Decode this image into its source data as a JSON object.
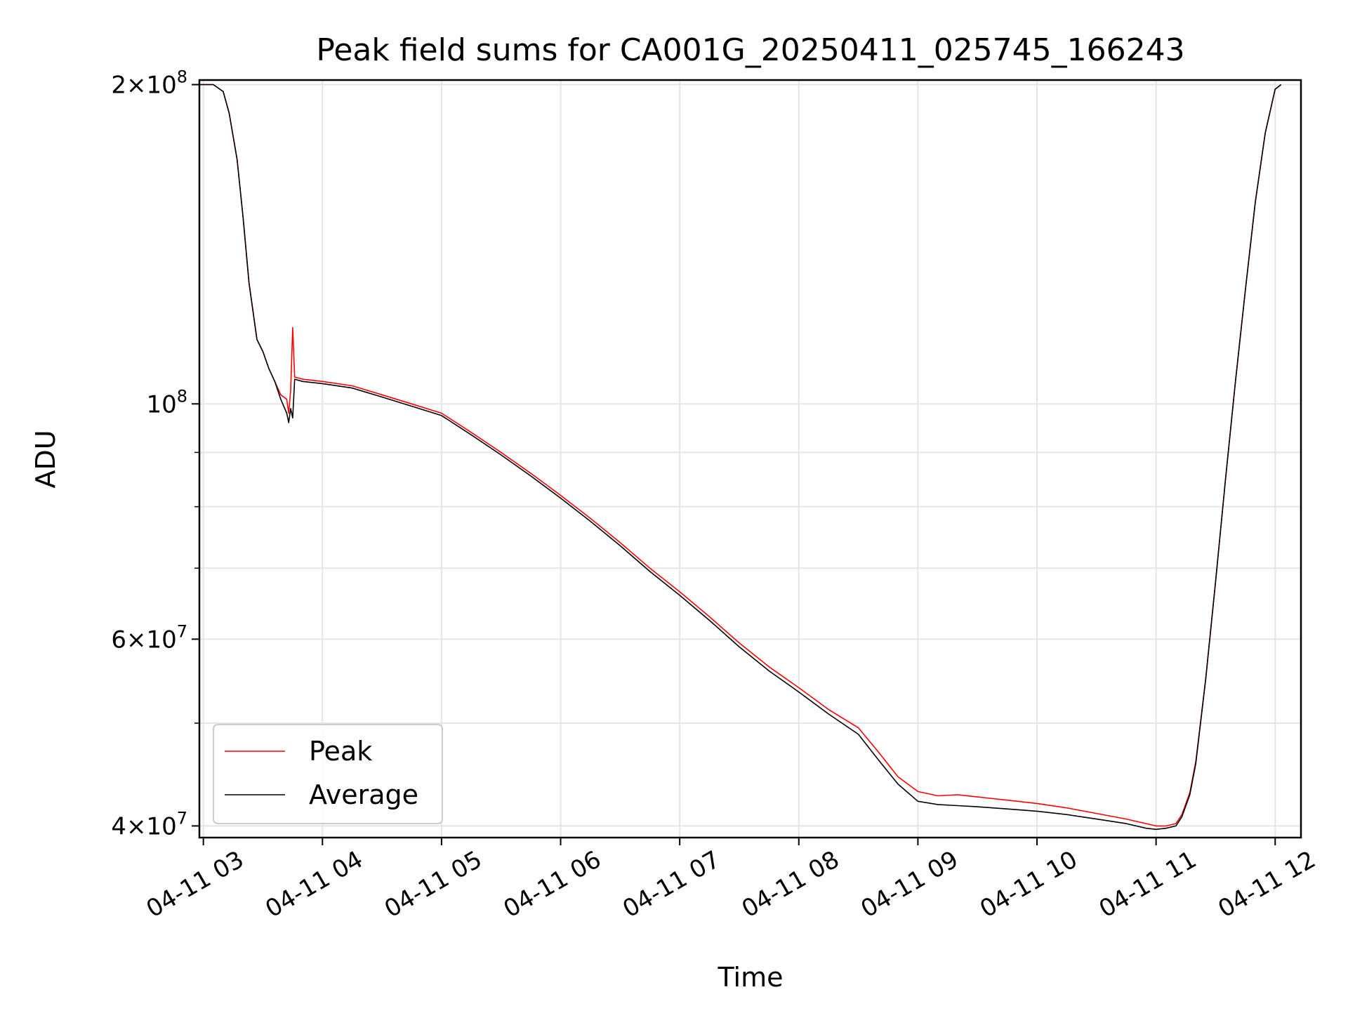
{
  "chart_data": {
    "type": "line",
    "title": "Peak field sums for CA001G_20250411_025745_166243",
    "xlabel": "Time",
    "ylabel": "ADU",
    "y_scale": "log",
    "ylim": [
      39000000,
      202000000
    ],
    "xlim": [
      "04-11 02:58",
      "04-11 12:13"
    ],
    "x_ticks": [
      "04-11 03",
      "04-11 04",
      "04-11 05",
      "04-11 06",
      "04-11 07",
      "04-11 08",
      "04-11 09",
      "04-11 10",
      "04-11 11",
      "04-11 12"
    ],
    "y_ticks": [
      {
        "value": 40000000,
        "base": "4",
        "exp": "7"
      },
      {
        "value": 60000000,
        "base": "6",
        "exp": "7"
      },
      {
        "value": 100000000,
        "base": "",
        "exp": "8"
      },
      {
        "value": 200000000,
        "base": "2",
        "exp": "8"
      }
    ],
    "y_minor_ticks": [
      50000000,
      70000000,
      80000000,
      90000000
    ],
    "grid": true,
    "legend_position": "lower-left",
    "colors": {
      "peak": "#ff0000",
      "average": "#000000",
      "grid": "#e5e5e5"
    },
    "series": [
      {
        "name": "Peak",
        "x": [
          "04-11 02:58",
          "04-11 03:05",
          "04-11 03:10",
          "04-11 03:13",
          "04-11 03:17",
          "04-11 03:20",
          "04-11 03:23",
          "04-11 03:27",
          "04-11 03:30",
          "04-11 03:33",
          "04-11 03:36",
          "04-11 03:39",
          "04-11 03:42",
          "04-11 03:43",
          "04-11 03:44",
          "04-11 03:45",
          "04-11 03:46",
          "04-11 03:50",
          "04-11 04:00",
          "04-11 04:15",
          "04-11 04:30",
          "04-11 04:45",
          "04-11 05:00",
          "04-11 05:15",
          "04-11 05:30",
          "04-11 05:45",
          "04-11 06:00",
          "04-11 06:15",
          "04-11 06:30",
          "04-11 06:45",
          "04-11 07:00",
          "04-11 07:15",
          "04-11 07:30",
          "04-11 07:45",
          "04-11 08:00",
          "04-11 08:15",
          "04-11 08:30",
          "04-11 08:40",
          "04-11 08:50",
          "04-11 09:00",
          "04-11 09:10",
          "04-11 09:20",
          "04-11 09:30",
          "04-11 09:45",
          "04-11 10:00",
          "04-11 10:15",
          "04-11 10:30",
          "04-11 10:45",
          "04-11 10:55",
          "04-11 11:00",
          "04-11 11:05",
          "04-11 11:10",
          "04-11 11:13",
          "04-11 11:17",
          "04-11 11:20",
          "04-11 11:25",
          "04-11 11:30",
          "04-11 11:35",
          "04-11 11:40",
          "04-11 11:45",
          "04-11 11:50",
          "04-11 11:55",
          "04-11 12:00",
          "04-11 12:03"
        ],
        "y": [
          200000000,
          200000000,
          197000000,
          188000000,
          170000000,
          150000000,
          130000000,
          115000000,
          112000000,
          108000000,
          105000000,
          102000000,
          101000000,
          98000000,
          103000000,
          118000000,
          106000000,
          105500000,
          105000000,
          104000000,
          102000000,
          100000000,
          98000000,
          94000000,
          90000000,
          86000000,
          82000000,
          78000000,
          74000000,
          70000000,
          66500000,
          63000000,
          59500000,
          56500000,
          54000000,
          51500000,
          49500000,
          47000000,
          44500000,
          43100000,
          42700000,
          42800000,
          42600000,
          42300000,
          42000000,
          41600000,
          41100000,
          40600000,
          40200000,
          40000000,
          40000000,
          40200000,
          41000000,
          43000000,
          46000000,
          55000000,
          68000000,
          85000000,
          105000000,
          128000000,
          155000000,
          180000000,
          198000000,
          200000000
        ]
      },
      {
        "name": "Average",
        "x": [
          "04-11 02:58",
          "04-11 03:05",
          "04-11 03:10",
          "04-11 03:13",
          "04-11 03:17",
          "04-11 03:20",
          "04-11 03:23",
          "04-11 03:27",
          "04-11 03:30",
          "04-11 03:33",
          "04-11 03:36",
          "04-11 03:39",
          "04-11 03:42",
          "04-11 03:43",
          "04-11 03:44",
          "04-11 03:45",
          "04-11 03:46",
          "04-11 03:50",
          "04-11 04:00",
          "04-11 04:15",
          "04-11 04:30",
          "04-11 04:45",
          "04-11 05:00",
          "04-11 05:15",
          "04-11 05:30",
          "04-11 05:45",
          "04-11 06:00",
          "04-11 06:15",
          "04-11 06:30",
          "04-11 06:45",
          "04-11 07:00",
          "04-11 07:15",
          "04-11 07:30",
          "04-11 07:45",
          "04-11 08:00",
          "04-11 08:15",
          "04-11 08:30",
          "04-11 08:40",
          "04-11 08:50",
          "04-11 09:00",
          "04-11 09:10",
          "04-11 09:20",
          "04-11 09:30",
          "04-11 09:45",
          "04-11 10:00",
          "04-11 10:15",
          "04-11 10:30",
          "04-11 10:45",
          "04-11 10:55",
          "04-11 11:00",
          "04-11 11:05",
          "04-11 11:10",
          "04-11 11:13",
          "04-11 11:17",
          "04-11 11:20",
          "04-11 11:25",
          "04-11 11:30",
          "04-11 11:35",
          "04-11 11:40",
          "04-11 11:45",
          "04-11 11:50",
          "04-11 11:55",
          "04-11 12:00",
          "04-11 12:03"
        ],
        "y": [
          200000000,
          200000000,
          197000000,
          188000000,
          170000000,
          150000000,
          130000000,
          115000000,
          112000000,
          108000000,
          105000000,
          101000000,
          98000000,
          96000000,
          99000000,
          97000000,
          105500000,
          105000000,
          104500000,
          103500000,
          101500000,
          99500000,
          97500000,
          93500000,
          89500000,
          85500000,
          81500000,
          77500000,
          73500000,
          69500000,
          66000000,
          62500000,
          59000000,
          56000000,
          53500000,
          51000000,
          48800000,
          46200000,
          43800000,
          42200000,
          41900000,
          41800000,
          41700000,
          41500000,
          41300000,
          41000000,
          40600000,
          40200000,
          39800000,
          39700000,
          39800000,
          40000000,
          40800000,
          42800000,
          45800000,
          55000000,
          68000000,
          85000000,
          105000000,
          128000000,
          155000000,
          180000000,
          198000000,
          200000000
        ]
      }
    ]
  }
}
